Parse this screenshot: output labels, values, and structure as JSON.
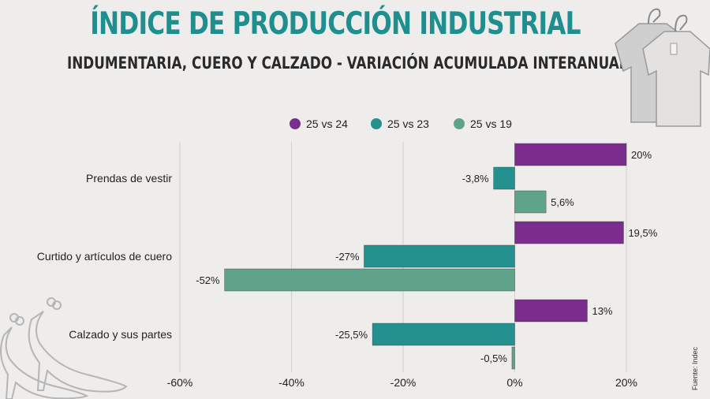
{
  "header": {
    "title": "ÍNDICE DE PRODUCCIÓN INDUSTRIAL",
    "subtitle": "INDUMENTARIA, CUERO Y CALZADO - VARIACIÓN ACUMULADA INTERANUAL"
  },
  "footer": {
    "source": "Fuente: Indec"
  },
  "chart_data": {
    "type": "bar",
    "orientation": "horizontal",
    "title": "ÍNDICE DE PRODUCCIÓN INDUSTRIAL",
    "subtitle": "INDUMENTARIA, CUERO Y CALZADO - VARIACIÓN ACUMULADA INTERANUAL",
    "categories": [
      "Prendas de vestir",
      "Curtido y artículos de cuero",
      "Calzado y sus partes"
    ],
    "series": [
      {
        "name": "25 vs 24",
        "color": "#7b2d8e",
        "values": [
          20,
          19.5,
          13
        ],
        "labels": [
          "20%",
          "19,5%",
          "13%"
        ]
      },
      {
        "name": "25 vs 23",
        "color": "#24918f",
        "values": [
          -3.8,
          -27,
          -25.5
        ],
        "labels": [
          "-3,8%",
          "-27%",
          "-25,5%"
        ]
      },
      {
        "name": "25 vs 19",
        "color": "#5ea38a",
        "values": [
          5.6,
          -52,
          -0.5
        ],
        "labels": [
          "5,6%",
          "-52%",
          "-0,5%"
        ]
      }
    ],
    "xlim": [
      -60,
      20
    ],
    "xticks": [
      -60,
      -40,
      -20,
      0,
      20
    ],
    "xtick_labels": [
      "-60%",
      "-40%",
      "-20%",
      "0%",
      "20%"
    ],
    "legend": "top",
    "grid": true
  }
}
